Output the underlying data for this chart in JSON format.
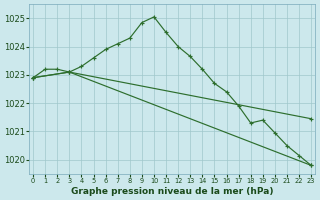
{
  "xlabel_label": "Graphe pression niveau de la mer (hPa)",
  "background_color": "#cce8ec",
  "grid_color": "#a0c8cc",
  "line_color": "#2d6e2d",
  "marker_color": "#2d6e2d",
  "text_color": "#1a4a1a",
  "ylim": [
    1019.5,
    1025.5
  ],
  "xlim": [
    -0.3,
    23.3
  ],
  "yticks": [
    1020,
    1021,
    1022,
    1023,
    1024,
    1025
  ],
  "xticks": [
    0,
    1,
    2,
    3,
    4,
    5,
    6,
    7,
    8,
    9,
    10,
    11,
    12,
    13,
    14,
    15,
    16,
    17,
    18,
    19,
    20,
    21,
    22,
    23
  ],
  "series": [
    {
      "x": [
        0,
        1,
        2,
        3,
        4,
        5,
        6,
        7,
        8,
        9,
        10,
        11,
        12,
        13,
        14,
        15,
        16,
        17,
        18,
        19,
        20,
        21,
        22,
        23
      ],
      "y": [
        1022.9,
        1023.2,
        1023.2,
        1023.1,
        1023.3,
        1023.6,
        1023.9,
        1024.1,
        1024.3,
        1024.85,
        1025.05,
        1024.5,
        1024.0,
        1023.65,
        1023.2,
        1022.7,
        1022.4,
        1021.9,
        1021.3,
        1021.4,
        1020.95,
        1020.5,
        1020.15,
        1019.8
      ]
    },
    {
      "x": [
        0,
        3,
        23
      ],
      "y": [
        1022.9,
        1023.1,
        1021.45
      ]
    },
    {
      "x": [
        0,
        3,
        23
      ],
      "y": [
        1022.9,
        1023.1,
        1019.8
      ]
    }
  ]
}
